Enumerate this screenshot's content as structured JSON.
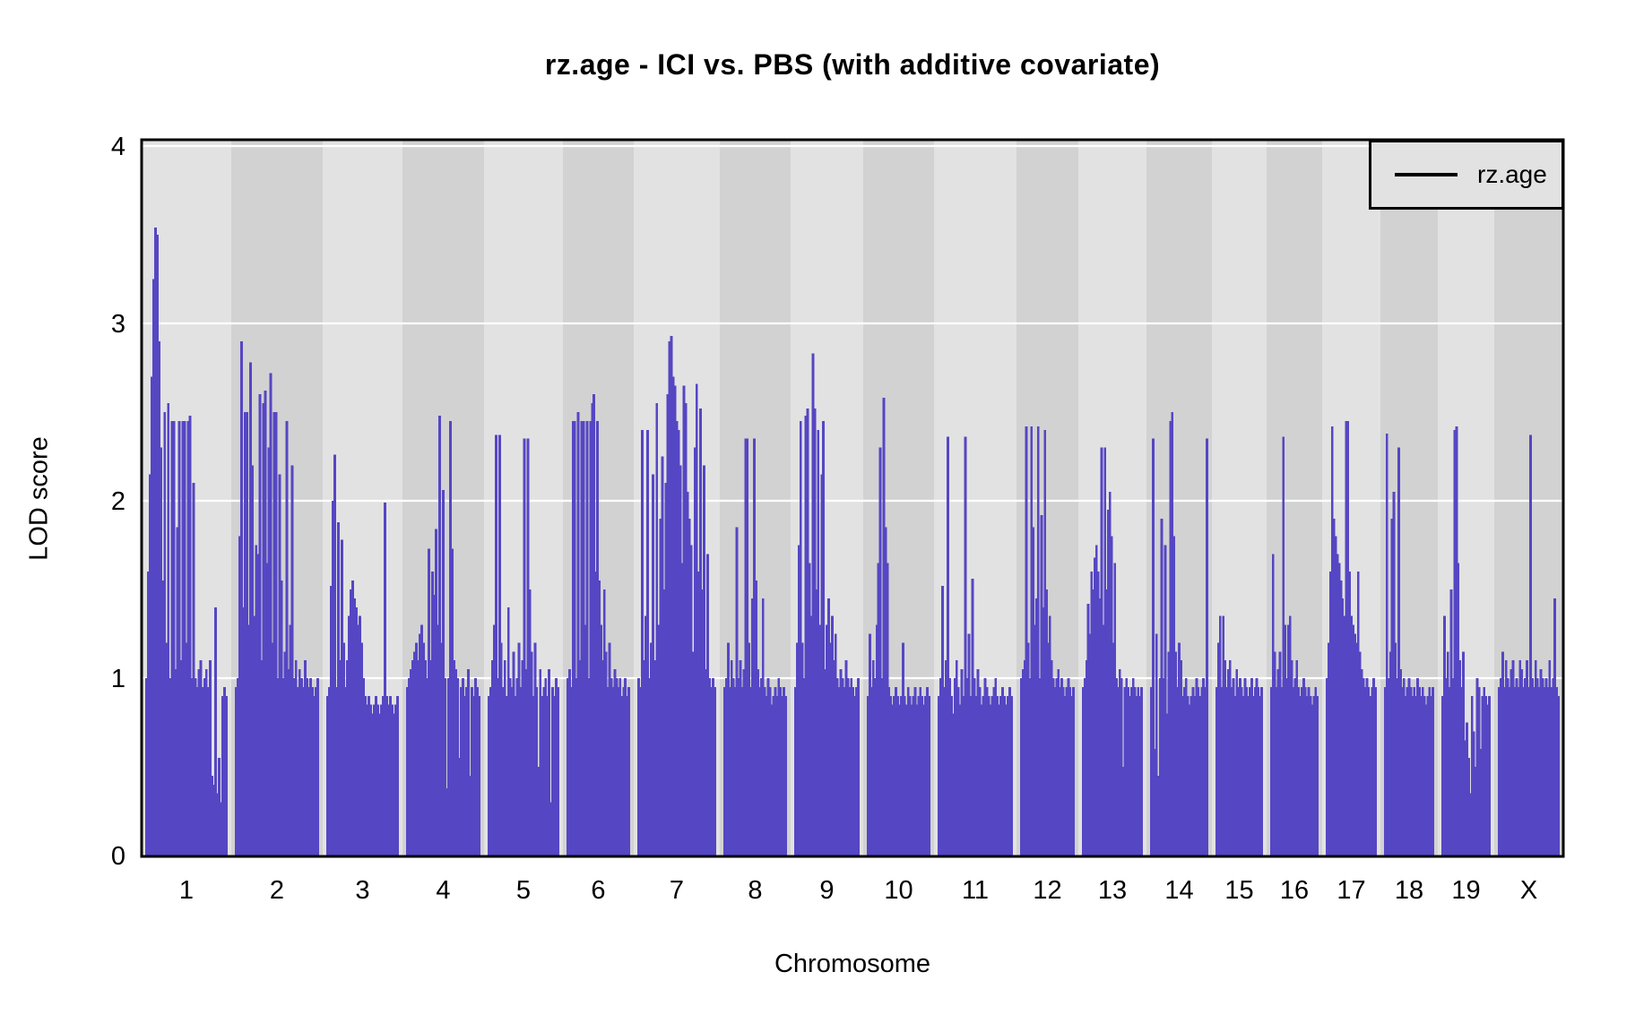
{
  "chart_data": {
    "type": "line",
    "style": "dense-vertical-profile (QTL genome scan, R lattice look)",
    "title": "rz.age - ICI vs. PBS (with additive covariate)",
    "xlabel": "Chromosome",
    "ylabel": "LOD score",
    "ylim": [
      0,
      4
    ],
    "ytick_labels": [
      "0",
      "1",
      "2",
      "3",
      "4"
    ],
    "grid": true,
    "legend": {
      "position": "top-right-inside",
      "entries": [
        {
          "label": "rz.age",
          "line_color": "#000000"
        }
      ]
    },
    "colors": {
      "series": "#5546c3",
      "band_light": "#e2e2e2",
      "band_dark": "#d2d2d2",
      "gridline": "#ffffff",
      "frame": "#000000",
      "legend_bg": "#e2e2e2",
      "text": "#000000"
    },
    "chromosomes": [
      {
        "name": "1",
        "rel_width": 100,
        "values": [
          1.0,
          1.6,
          2.15,
          2.7,
          3.25,
          3.54,
          3.5,
          2.9,
          2.3,
          1.55,
          2.5,
          1.2,
          2.55,
          1.0,
          2.45,
          2.45,
          1.05,
          1.85,
          2.45,
          1.1,
          2.45,
          2.45,
          1.2,
          2.45,
          2.48,
          1.0,
          2.1,
          1.0,
          0.95,
          1.05,
          1.1,
          0.95,
          1.0,
          1.05,
          0.95,
          1.1,
          0.45,
          0.4,
          1.4,
          0.35,
          0.55,
          0.3,
          0.9,
          0.95,
          0.9
        ]
      },
      {
        "name": "2",
        "rel_width": 102,
        "values": [
          0.95,
          1.0,
          1.8,
          2.9,
          1.4,
          2.5,
          2.5,
          1.3,
          2.78,
          2.2,
          1.35,
          1.75,
          1.7,
          2.6,
          1.1,
          2.55,
          2.62,
          1.65,
          2.3,
          2.72,
          1.2,
          2.5,
          2.5,
          1.0,
          2.15,
          1.55,
          1.0,
          1.15,
          2.45,
          1.05,
          1.3,
          2.2,
          1.0,
          1.1,
          0.95,
          1.05,
          1.0,
          0.95,
          1.1,
          1.0,
          0.95,
          1.0,
          0.95,
          0.9,
          0.95,
          1.0
        ]
      },
      {
        "name": "3",
        "rel_width": 89,
        "values": [
          0.9,
          0.95,
          1.52,
          2.0,
          2.26,
          0.95,
          1.88,
          1.1,
          1.78,
          1.2,
          0.95,
          1.1,
          1.35,
          1.5,
          1.55,
          1.45,
          1.4,
          1.3,
          1.35,
          1.2,
          1.0,
          0.9,
          0.85,
          0.9,
          0.85,
          0.8,
          0.85,
          0.9,
          0.85,
          0.8,
          0.85,
          0.9,
          1.99,
          0.9,
          0.85,
          0.9,
          0.85,
          0.8,
          0.85,
          0.9
        ]
      },
      {
        "name": "4",
        "rel_width": 91,
        "values": [
          0.95,
          1.0,
          1.05,
          1.1,
          1.15,
          1.2,
          1.1,
          1.25,
          1.3,
          1.2,
          1.1,
          1.0,
          1.73,
          1.1,
          1.6,
          1.47,
          1.84,
          1.3,
          2.48,
          1.2,
          2.06,
          1.0,
          0.38,
          1.0,
          2.45,
          1.73,
          1.1,
          1.05,
          1.0,
          0.55,
          0.95,
          1.0,
          0.9,
          0.95,
          1.05,
          0.45,
          0.95,
          0.9,
          1.0,
          0.95,
          0.9
        ]
      },
      {
        "name": "5",
        "rel_width": 88,
        "values": [
          0.9,
          0.95,
          1.1,
          1.3,
          2.37,
          1.0,
          2.37,
          1.2,
          0.95,
          1.1,
          0.9,
          1.4,
          1.0,
          0.95,
          1.15,
          0.9,
          1.0,
          1.2,
          0.95,
          1.1,
          2.35,
          1.05,
          2.35,
          1.5,
          1.15,
          0.9,
          1.2,
          0.95,
          0.5,
          1.05,
          0.9,
          0.95,
          1.0,
          0.9,
          1.05,
          0.3,
          0.95,
          0.9,
          1.0,
          0.95
        ]
      },
      {
        "name": "6",
        "rel_width": 79,
        "values": [
          1.0,
          1.05,
          0.95,
          2.45,
          2.45,
          1.0,
          2.5,
          1.1,
          2.45,
          2.45,
          1.3,
          2.45,
          1.0,
          2.45,
          2.55,
          2.6,
          1.6,
          2.45,
          1.55,
          1.3,
          1.1,
          1.5,
          1.15,
          0.95,
          1.2,
          1.0,
          0.95,
          1.05,
          1.0,
          0.95,
          1.0,
          0.9,
          0.95,
          1.0,
          0.9,
          0.95
        ]
      },
      {
        "name": "7",
        "rel_width": 96,
        "values": [
          1.0,
          0.95,
          2.4,
          1.1,
          1.35,
          2.4,
          1.0,
          1.2,
          2.15,
          1.1,
          2.55,
          1.3,
          1.9,
          2.25,
          1.5,
          2.1,
          2.6,
          2.9,
          2.93,
          2.7,
          2.65,
          2.45,
          2.4,
          2.2,
          1.65,
          2.65,
          2.55,
          2.05,
          1.9,
          1.75,
          1.15,
          2.3,
          2.66,
          1.6,
          2.52,
          1.5,
          2.2,
          1.05,
          1.7,
          1.0,
          0.95,
          1.0,
          0.95
        ]
      },
      {
        "name": "8",
        "rel_width": 79,
        "values": [
          0.95,
          1.0,
          1.2,
          0.95,
          1.1,
          1.0,
          0.95,
          1.85,
          1.0,
          1.1,
          0.95,
          1.05,
          2.35,
          2.35,
          1.2,
          0.95,
          1.45,
          2.35,
          1.55,
          1.05,
          0.95,
          1.0,
          1.45,
          0.95,
          0.9,
          1.0,
          0.95,
          0.85,
          0.9,
          0.95,
          0.9,
          1.0,
          0.95,
          0.9,
          0.95,
          0.9
        ]
      },
      {
        "name": "9",
        "rel_width": 81,
        "values": [
          0.95,
          1.2,
          1.75,
          2.45,
          1.2,
          1.0,
          2.48,
          2.52,
          1.65,
          1.35,
          2.83,
          2.52,
          1.5,
          2.4,
          1.3,
          2.15,
          2.45,
          1.05,
          1.3,
          1.45,
          1.2,
          1.35,
          1.1,
          1.25,
          1.0,
          0.95,
          1.05,
          1.0,
          0.95,
          1.1,
          1.0,
          0.95,
          1.0,
          0.95,
          0.9,
          0.95,
          1.0
        ]
      },
      {
        "name": "10",
        "rel_width": 79,
        "values": [
          0.9,
          1.25,
          0.95,
          1.1,
          1.0,
          1.3,
          1.65,
          2.3,
          1.0,
          2.58,
          1.85,
          1.65,
          0.95,
          0.9,
          0.85,
          0.9,
          0.95,
          0.9,
          0.85,
          0.9,
          1.2,
          0.9,
          0.85,
          0.95,
          0.9,
          0.85,
          0.9,
          0.95,
          0.85,
          0.9,
          0.95,
          0.9,
          0.85,
          0.9,
          0.95,
          0.9
        ]
      },
      {
        "name": "11",
        "rel_width": 92,
        "values": [
          0.9,
          1.0,
          1.52,
          0.95,
          1.1,
          2.36,
          1.0,
          0.9,
          0.8,
          1.0,
          1.1,
          0.95,
          0.85,
          1.05,
          0.9,
          2.36,
          1.0,
          1.25,
          0.9,
          1.56,
          1.0,
          0.9,
          1.05,
          0.95,
          0.85,
          0.9,
          1.0,
          0.95,
          0.9,
          0.85,
          0.9,
          0.95,
          1.0,
          0.9,
          0.85,
          0.9,
          0.95,
          0.9,
          0.85,
          0.9,
          0.95,
          0.9
        ]
      },
      {
        "name": "12",
        "rel_width": 69,
        "values": [
          1.0,
          1.05,
          1.1,
          2.42,
          1.2,
          1.0,
          2.42,
          1.85,
          1.3,
          1.45,
          2.42,
          1.0,
          1.92,
          1.4,
          2.4,
          1.5,
          1.2,
          1.35,
          1.1,
          1.0,
          0.95,
          1.0,
          1.05,
          0.95,
          1.0,
          0.95,
          0.9,
          0.95,
          1.0,
          0.95,
          0.9,
          0.95
        ]
      },
      {
        "name": "13",
        "rel_width": 76,
        "values": [
          0.95,
          1.0,
          1.1,
          1.42,
          1.25,
          1.6,
          1.5,
          1.68,
          1.75,
          1.6,
          1.45,
          2.3,
          1.3,
          2.3,
          1.5,
          1.95,
          2.05,
          1.8,
          1.2,
          1.65,
          1.0,
          0.95,
          1.05,
          1.0,
          0.5,
          0.95,
          1.0,
          0.95,
          0.9,
          0.95,
          1.0,
          0.95,
          0.9,
          0.95,
          0.9,
          0.95
        ]
      },
      {
        "name": "14",
        "rel_width": 73,
        "values": [
          0.95,
          2.35,
          0.6,
          1.25,
          0.45,
          1.0,
          1.9,
          1.0,
          1.75,
          0.8,
          1.15,
          2.45,
          2.5,
          1.8,
          1.15,
          0.95,
          1.2,
          1.1,
          0.9,
          0.95,
          1.0,
          0.9,
          0.85,
          0.9,
          0.95,
          0.9,
          1.0,
          0.95,
          0.9,
          0.95,
          1.0,
          0.95,
          2.35
        ]
      },
      {
        "name": "15",
        "rel_width": 61,
        "values": [
          0.95,
          1.2,
          1.35,
          0.95,
          1.35,
          1.1,
          0.95,
          1.05,
          1.1,
          0.95,
          1.0,
          0.9,
          1.05,
          0.95,
          1.0,
          0.95,
          0.9,
          1.0,
          0.95,
          0.9,
          0.95,
          1.0,
          0.9,
          0.95,
          1.0,
          0.95,
          0.9,
          0.95
        ]
      },
      {
        "name": "16",
        "rel_width": 62,
        "values": [
          0.95,
          1.7,
          1.15,
          0.95,
          1.05,
          1.15,
          0.95,
          2.36,
          1.3,
          1.0,
          1.3,
          1.35,
          1.1,
          0.95,
          1.0,
          1.1,
          0.95,
          0.9,
          0.95,
          1.0,
          0.95,
          0.9,
          0.95,
          0.9,
          0.85,
          0.9,
          0.95,
          0.9
        ]
      },
      {
        "name": "17",
        "rel_width": 65,
        "values": [
          1.0,
          1.2,
          1.6,
          2.42,
          1.9,
          1.8,
          1.7,
          1.65,
          1.55,
          1.45,
          1.35,
          2.45,
          2.45,
          1.6,
          1.35,
          1.3,
          1.25,
          1.2,
          1.6,
          1.15,
          1.05,
          1.0,
          0.95,
          1.0,
          0.95,
          0.9,
          0.95,
          1.0,
          0.95
        ]
      },
      {
        "name": "18",
        "rel_width": 64,
        "values": [
          0.95,
          2.38,
          1.0,
          1.15,
          1.9,
          2.05,
          1.2,
          1.0,
          2.3,
          1.05,
          0.95,
          1.0,
          0.9,
          0.95,
          1.0,
          0.95,
          0.9,
          0.95,
          0.9,
          1.0,
          0.95,
          0.9,
          0.95,
          0.9,
          0.85,
          0.9,
          0.95,
          0.9,
          0.95
        ]
      },
      {
        "name": "19",
        "rel_width": 63,
        "values": [
          0.9,
          1.35,
          1.0,
          1.15,
          0.95,
          1.5,
          1.0,
          2.4,
          2.42,
          1.65,
          1.1,
          0.95,
          1.15,
          0.65,
          0.75,
          0.55,
          0.35,
          0.9,
          0.7,
          0.5,
          1.0,
          0.95,
          0.6,
          0.9,
          0.95,
          0.9,
          0.85,
          0.9
        ]
      },
      {
        "name": "X",
        "rel_width": 77,
        "values": [
          0.95,
          1.0,
          1.15,
          0.95,
          1.1,
          1.0,
          0.95,
          1.05,
          1.1,
          0.95,
          1.0,
          0.95,
          1.1,
          1.05,
          0.95,
          1.0,
          1.1,
          0.95,
          2.37,
          1.0,
          0.95,
          1.1,
          1.0,
          0.95,
          1.05,
          1.0,
          0.95,
          1.0,
          0.95,
          1.1,
          0.95,
          1.0,
          1.45,
          0.95,
          0.9
        ]
      }
    ]
  }
}
